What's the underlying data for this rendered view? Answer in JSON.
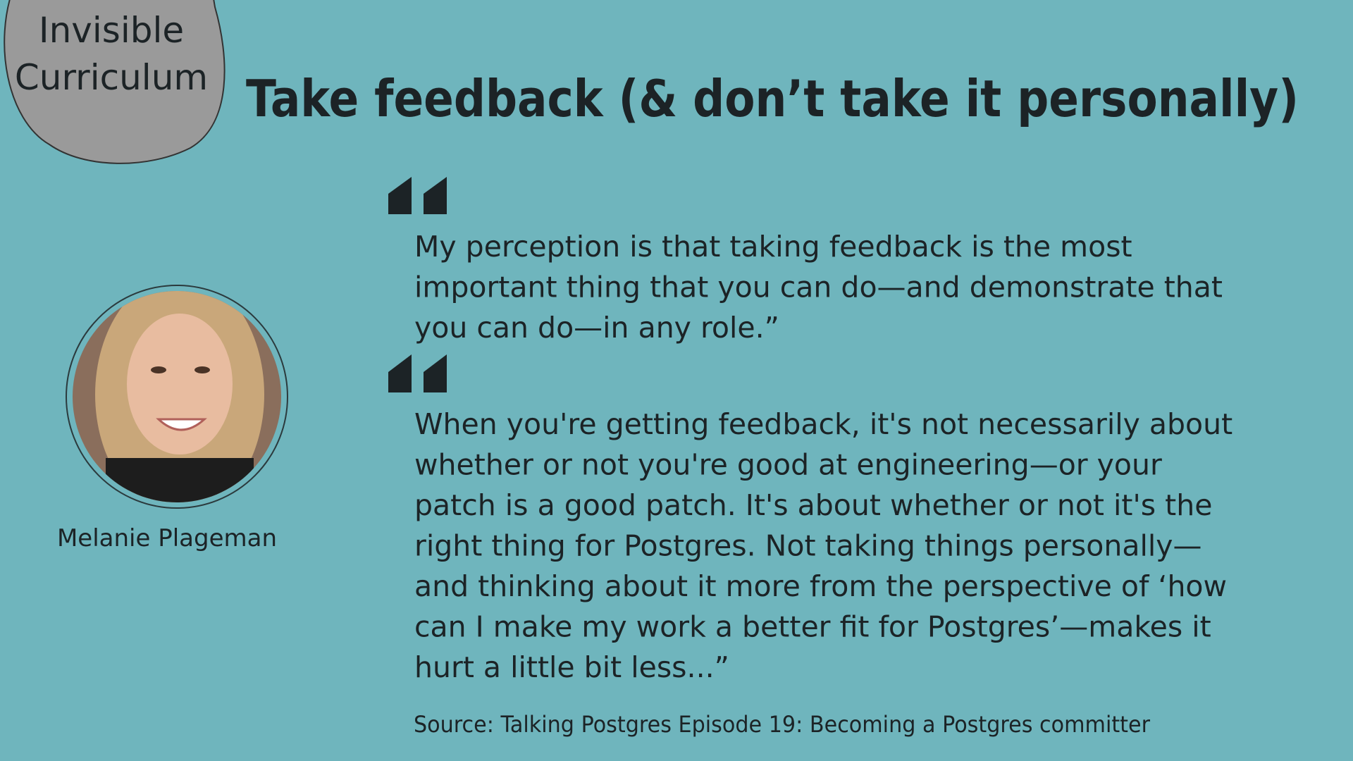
{
  "badge": {
    "lines": [
      "Invisible",
      "Curriculum"
    ]
  },
  "title": "Take feedback (& don’t take it personally)",
  "speaker": {
    "name": "Melanie Plageman"
  },
  "quotes": [
    {
      "lines": [
        "My perception is that taking feedback is the most",
        "important thing that you can do—and demonstrate that",
        "you can do—in any role.”"
      ]
    },
    {
      "lines": [
        "When you're getting feedback, it's not necessarily about",
        "whether or not you're good at engineering—or your",
        "patch is a good patch. It's about whether or not it's the",
        "right thing for Postgres. Not taking things personally—",
        "and thinking about it more from the perspective of ‘how",
        "can I make my work a better fit for Postgres’—makes it",
        "hurt a little bit less...”"
      ]
    }
  ],
  "source": "Source: Talking Postgres Episode 19: Becoming a Postgres committer"
}
